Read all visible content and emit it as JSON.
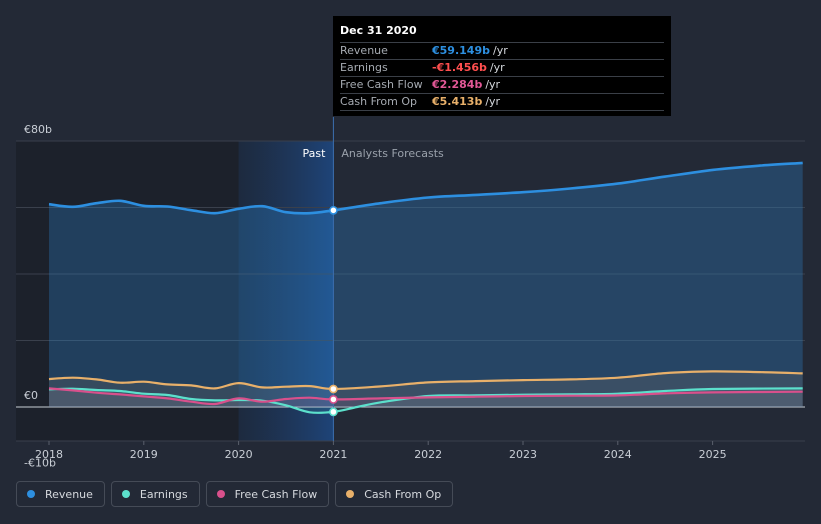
{
  "chart_data": {
    "type": "area",
    "currency": "€",
    "x_tick_labels": [
      "2018",
      "2019",
      "2020",
      "2021",
      "2022",
      "2023",
      "2024",
      "2025"
    ],
    "x_range": [
      2018,
      2025.95
    ],
    "y_tick_labels": [
      "€80b",
      "€0",
      "-€10b"
    ],
    "ylim": [
      -10,
      80
    ],
    "y_unit": "billion EUR",
    "grid": true,
    "divider_x": 2021,
    "past_label": "Past",
    "forecast_label": "Analysts Forecasts",
    "past_highlight_start": 2020,
    "series": [
      {
        "name": "Revenue",
        "color": "#2d8fe0",
        "points": [
          [
            2018,
            61
          ],
          [
            2018.25,
            60.2
          ],
          [
            2018.5,
            61.3
          ],
          [
            2018.75,
            62
          ],
          [
            2019,
            60.5
          ],
          [
            2019.25,
            60.3
          ],
          [
            2019.5,
            59.2
          ],
          [
            2019.75,
            58.3
          ],
          [
            2020,
            59.6
          ],
          [
            2020.25,
            60.4
          ],
          [
            2020.5,
            58.6
          ],
          [
            2020.75,
            58.3
          ],
          [
            2021,
            59.149
          ],
          [
            2021.5,
            61.3
          ],
          [
            2022,
            63
          ],
          [
            2022.5,
            63.8
          ],
          [
            2023,
            64.6
          ],
          [
            2023.5,
            65.7
          ],
          [
            2024,
            67.2
          ],
          [
            2024.5,
            69.3
          ],
          [
            2025,
            71.3
          ],
          [
            2025.5,
            72.6
          ],
          [
            2025.95,
            73.4
          ]
        ]
      },
      {
        "name": "Earnings",
        "color": "#5ce0cc",
        "points": [
          [
            2018,
            5.3
          ],
          [
            2018.25,
            5.5
          ],
          [
            2018.5,
            5.1
          ],
          [
            2018.75,
            4.8
          ],
          [
            2019,
            4
          ],
          [
            2019.25,
            3.6
          ],
          [
            2019.5,
            2.4
          ],
          [
            2019.75,
            2
          ],
          [
            2020,
            2.1
          ],
          [
            2020.25,
            1.9
          ],
          [
            2020.5,
            0.5
          ],
          [
            2020.75,
            -1.6
          ],
          [
            2021,
            -1.456
          ],
          [
            2021.25,
            0
          ],
          [
            2021.5,
            1.4
          ],
          [
            2022,
            3.3
          ],
          [
            2022.5,
            3.5
          ],
          [
            2023,
            3.7
          ],
          [
            2023.5,
            3.8
          ],
          [
            2024,
            4
          ],
          [
            2024.5,
            4.8
          ],
          [
            2025,
            5.4
          ],
          [
            2025.95,
            5.6
          ]
        ]
      },
      {
        "name": "Free Cash Flow",
        "color": "#d9508c",
        "points": [
          [
            2018,
            5.6
          ],
          [
            2018.25,
            5
          ],
          [
            2018.5,
            4.3
          ],
          [
            2018.75,
            3.8
          ],
          [
            2019,
            3.2
          ],
          [
            2019.25,
            2.6
          ],
          [
            2019.5,
            1.6
          ],
          [
            2019.75,
            0.9
          ],
          [
            2020,
            2.6
          ],
          [
            2020.25,
            1.6
          ],
          [
            2020.5,
            2.4
          ],
          [
            2020.75,
            2.8
          ],
          [
            2021,
            2.284
          ],
          [
            2021.5,
            2.6
          ],
          [
            2022,
            2.9
          ],
          [
            2022.5,
            3.1
          ],
          [
            2023,
            3.3
          ],
          [
            2023.5,
            3.4
          ],
          [
            2024,
            3.5
          ],
          [
            2024.5,
            4.1
          ],
          [
            2025,
            4.4
          ],
          [
            2025.95,
            4.6
          ]
        ]
      },
      {
        "name": "Cash From Op",
        "color": "#e8b06a",
        "points": [
          [
            2018,
            8.4
          ],
          [
            2018.25,
            8.8
          ],
          [
            2018.5,
            8.3
          ],
          [
            2018.75,
            7.3
          ],
          [
            2019,
            7.6
          ],
          [
            2019.25,
            6.8
          ],
          [
            2019.5,
            6.5
          ],
          [
            2019.75,
            5.6
          ],
          [
            2020,
            7.2
          ],
          [
            2020.25,
            5.9
          ],
          [
            2020.5,
            6.1
          ],
          [
            2020.75,
            6.3
          ],
          [
            2021,
            5.413
          ],
          [
            2021.5,
            6.2
          ],
          [
            2022,
            7.4
          ],
          [
            2022.5,
            7.8
          ],
          [
            2023,
            8.1
          ],
          [
            2023.5,
            8.3
          ],
          [
            2024,
            8.8
          ],
          [
            2024.5,
            10.2
          ],
          [
            2025,
            10.7
          ],
          [
            2025.5,
            10.5
          ],
          [
            2025.95,
            10.1
          ]
        ]
      }
    ]
  },
  "tooltip": {
    "date": "Dec 31 2020",
    "rows": [
      {
        "label": "Revenue",
        "value": "€59.149b",
        "unit": "/yr",
        "color": "#2d8fe0"
      },
      {
        "label": "Earnings",
        "value": "-€1.456b",
        "unit": "/yr",
        "color": "#ff4f4f"
      },
      {
        "label": "Free Cash Flow",
        "value": "€2.284b",
        "unit": "/yr",
        "color": "#e25896"
      },
      {
        "label": "Cash From Op",
        "value": "€5.413b",
        "unit": "/yr",
        "color": "#e8b06a"
      }
    ]
  },
  "legend": [
    {
      "label": "Revenue",
      "color": "#2d8fe0"
    },
    {
      "label": "Earnings",
      "color": "#5ce0cc"
    },
    {
      "label": "Free Cash Flow",
      "color": "#d9508c"
    },
    {
      "label": "Cash From Op",
      "color": "#e8b06a"
    }
  ]
}
